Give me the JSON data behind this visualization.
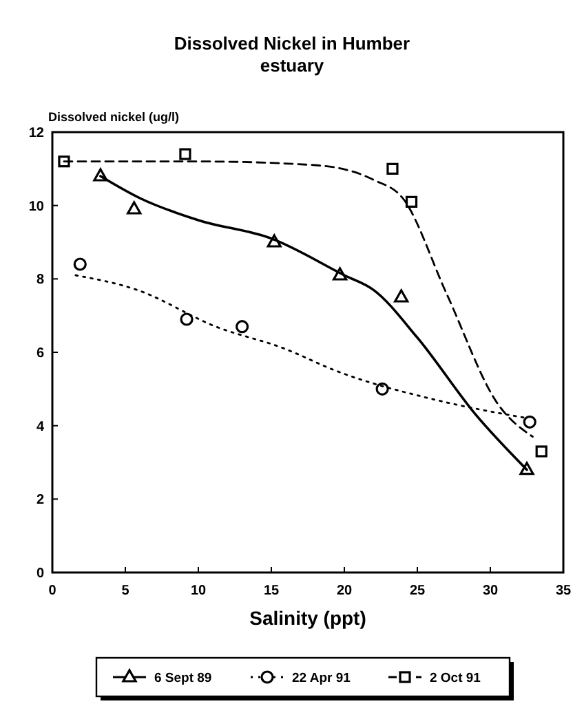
{
  "chart_data": {
    "type": "scatter",
    "title": "Dissolved Nickel in Humber estuary",
    "xlabel": "Salinity (ppt)",
    "ylabel": "Dissolved nickel (ug/l)",
    "xlim": [
      0,
      35
    ],
    "xticks": [
      0,
      5,
      10,
      15,
      20,
      25,
      30,
      35
    ],
    "ylim": [
      0,
      12
    ],
    "yticks": [
      0,
      2,
      4,
      6,
      8,
      10,
      12
    ],
    "legend": "bottom",
    "series": [
      {
        "name": "6 Sept 89",
        "marker": "triangle",
        "line_style": "solid",
        "color": "#000000",
        "x": [
          3.3,
          5.6,
          15.2,
          19.7,
          23.9,
          32.5
        ],
        "values": [
          10.8,
          9.9,
          9,
          8.1,
          7.5,
          2.8
        ]
      },
      {
        "type": "line",
        "marker": "none",
        "line_style": "solid",
        "color": "#000000",
        "x": [
          3.3,
          6,
          10,
          15,
          20,
          22,
          25,
          29,
          32.5
        ],
        "values": [
          10.8,
          10.2,
          9.6,
          9.1,
          8.1,
          7.7,
          6.4,
          4.3,
          2.8
        ]
      },
      {
        "name": "22 Apr 91",
        "marker": "circle",
        "line_style": "dotted",
        "color": "#000000",
        "x": [
          1.9,
          9.2,
          13,
          22.6,
          32.7
        ],
        "values": [
          8.4,
          6.9,
          6.7,
          5,
          4.1
        ]
      },
      {
        "type": "line",
        "marker": "none",
        "line_style": "dotted",
        "color": "#000000",
        "x": [
          1.6,
          5.8,
          11.2,
          15.9,
          19.4,
          26.3,
          32.6
        ],
        "values": [
          8.1,
          7.7,
          6.7,
          6.1,
          5.5,
          4.7,
          4.2
        ]
      },
      {
        "name": "2 Oct 91",
        "marker": "square",
        "line_style": "dashed",
        "color": "#000000",
        "x": [
          0.8,
          9.1,
          23.3,
          24.6,
          33.5
        ],
        "values": [
          11.2,
          11.4,
          11,
          10.1,
          3.3
        ]
      },
      {
        "type": "line",
        "marker": "none",
        "line_style": "dashed",
        "color": "#000000",
        "x": [
          0.8,
          10,
          18,
          22,
          24,
          27,
          30.5,
          32.9
        ],
        "values": [
          11.2,
          11.2,
          11.1,
          10.7,
          10.2,
          7.6,
          4.6,
          3.7
        ]
      }
    ]
  }
}
